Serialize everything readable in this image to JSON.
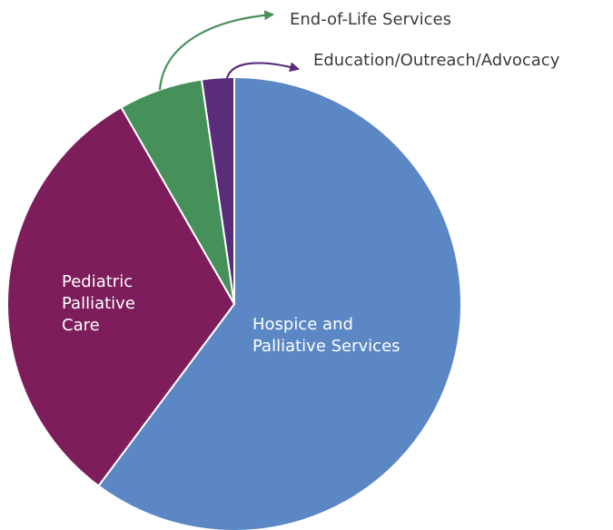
{
  "chart_data": {
    "type": "pie",
    "title": "",
    "start": "top",
    "direction": "clockwise",
    "legend": "none",
    "slices": [
      {
        "name": "Hospice and Palliative Services",
        "label_lines": [
          "Hospice and",
          "Palliative Services"
        ],
        "value": 60.2,
        "color": "#5b87c5",
        "label_position": "inside",
        "label_color": "#ffffff"
      },
      {
        "name": "Pediatric Palliative Care",
        "label_lines": [
          "Pediatric",
          "Palliative",
          "Care"
        ],
        "value": 31.5,
        "color": "#7d1d5b",
        "label_position": "inside",
        "label_color": "#ffffff"
      },
      {
        "name": "End-of-Life Services",
        "label_lines": [
          "End-of-Life Services"
        ],
        "value": 6.0,
        "color": "#46905a",
        "label_position": "outside",
        "label_color": "#3a3a3a",
        "arrow_color": "#46905a"
      },
      {
        "name": "Education/Outreach/Advocacy",
        "label_lines": [
          "Education/Outreach/Advocacy"
        ],
        "value": 2.3,
        "color": "#5a2d7a",
        "label_position": "outside",
        "label_color": "#3a3a3a",
        "arrow_color": "#5a2d7a"
      }
    ]
  }
}
